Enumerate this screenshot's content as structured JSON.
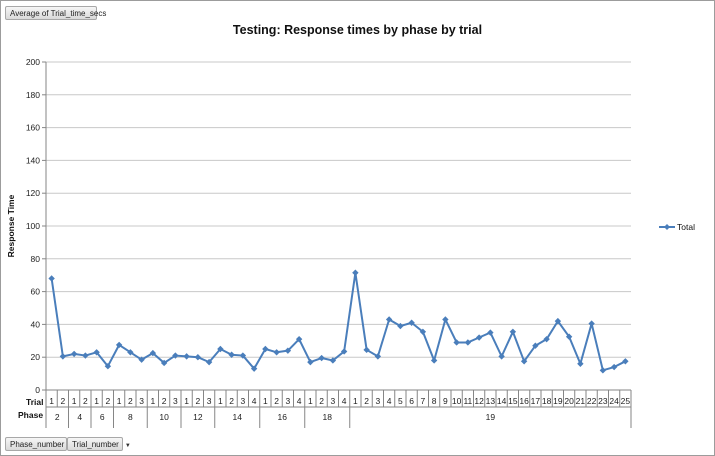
{
  "value_field_button": "Average of Trial_time_secs",
  "filter_buttons": [
    {
      "label": "Phase_number",
      "icon": "dropdown-arrow-icon"
    },
    {
      "label": "Trial_number",
      "icon": "dropdown-arrow-icon"
    }
  ],
  "axis_row_labels": {
    "trial": "Trial",
    "phase": "Phase"
  },
  "colors": {
    "series": "#4a7ebb",
    "grid": "#c8c8c8",
    "axis": "#868686"
  },
  "chart_data": {
    "type": "line",
    "title": "Testing: Response times by phase by trial",
    "xlabel": "",
    "ylabel": "Response Time",
    "ylim": [
      0,
      200
    ],
    "yticks": [
      0,
      20,
      40,
      60,
      80,
      100,
      120,
      140,
      160,
      180,
      200
    ],
    "grid": true,
    "legend_position": "right",
    "phases": [
      {
        "phase": "2",
        "trials": [
          "1",
          "2"
        ]
      },
      {
        "phase": "4",
        "trials": [
          "1",
          "2"
        ]
      },
      {
        "phase": "6",
        "trials": [
          "1",
          "2"
        ]
      },
      {
        "phase": "8",
        "trials": [
          "1",
          "2",
          "3"
        ]
      },
      {
        "phase": "10",
        "trials": [
          "1",
          "2",
          "3"
        ]
      },
      {
        "phase": "12",
        "trials": [
          "1",
          "2",
          "3"
        ]
      },
      {
        "phase": "14",
        "trials": [
          "1",
          "2",
          "3",
          "4"
        ]
      },
      {
        "phase": "16",
        "trials": [
          "1",
          "2",
          "3",
          "4"
        ]
      },
      {
        "phase": "18",
        "trials": [
          "1",
          "2",
          "3",
          "4"
        ]
      },
      {
        "phase": "19",
        "trials": [
          "1",
          "2",
          "3",
          "4",
          "5",
          "6",
          "7",
          "8",
          "9",
          "10",
          "11",
          "12",
          "13",
          "14",
          "15",
          "16",
          "17",
          "18",
          "19",
          "20",
          "21",
          "22",
          "23",
          "24",
          "25"
        ]
      }
    ],
    "series": [
      {
        "name": "Total",
        "marker": "diamond",
        "values": [
          68,
          20.5,
          22,
          21,
          23,
          14.5,
          27.5,
          23,
          18.5,
          22.5,
          16.5,
          21,
          20.5,
          20,
          17,
          25,
          21.5,
          21,
          13,
          25,
          23,
          24,
          31,
          17,
          19.5,
          18,
          23.5,
          71.5,
          24.5,
          20.5,
          43,
          39,
          41,
          35.5,
          18,
          43,
          29,
          29,
          32,
          35,
          20.5,
          35.5,
          17.5,
          27,
          31,
          42,
          32.5,
          16,
          40.5,
          12,
          14,
          17.5
        ]
      }
    ]
  }
}
